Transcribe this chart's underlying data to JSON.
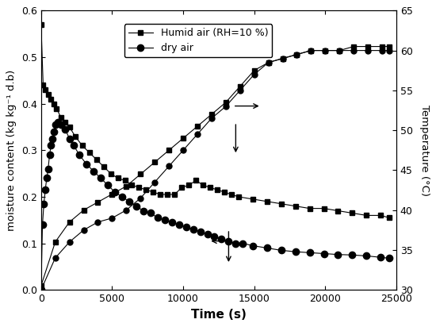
{
  "title": "",
  "xlabel": "Time (s)",
  "ylabel_left": "moisture content (kg kg⁻¹ d.b)",
  "ylabel_right": "Temperature (°C)",
  "xlim": [
    0,
    25000
  ],
  "ylim_left": [
    0.0,
    0.6
  ],
  "ylim_right": [
    30,
    65
  ],
  "xticks": [
    0,
    5000,
    10000,
    15000,
    20000,
    25000
  ],
  "yticks_left": [
    0.0,
    0.1,
    0.2,
    0.3,
    0.4,
    0.5,
    0.6
  ],
  "yticks_right": [
    30,
    35,
    40,
    45,
    50,
    55,
    60,
    65
  ],
  "legend_labels": [
    "Humid air (RH=10 %)",
    "dry air"
  ],
  "mc_humid": {
    "time": [
      0,
      150,
      300,
      500,
      700,
      900,
      1100,
      1400,
      1700,
      2000,
      2400,
      2900,
      3400,
      3900,
      4400,
      4900,
      5400,
      5900,
      6400,
      6900,
      7400,
      7900,
      8400,
      8900,
      9400,
      9900,
      10400,
      10900,
      11400,
      11900,
      12400,
      12900,
      13400,
      13900,
      14900,
      15900,
      16900,
      17900,
      18900,
      19900,
      20900,
      21900,
      22900,
      23900,
      24500
    ],
    "mc": [
      0.57,
      0.44,
      0.43,
      0.42,
      0.41,
      0.4,
      0.39,
      0.37,
      0.36,
      0.35,
      0.33,
      0.31,
      0.295,
      0.28,
      0.265,
      0.25,
      0.24,
      0.235,
      0.225,
      0.22,
      0.215,
      0.21,
      0.205,
      0.205,
      0.205,
      0.22,
      0.225,
      0.235,
      0.225,
      0.22,
      0.215,
      0.21,
      0.205,
      0.2,
      0.195,
      0.19,
      0.185,
      0.18,
      0.175,
      0.175,
      0.17,
      0.165,
      0.16,
      0.16,
      0.155
    ]
  },
  "mc_dry": {
    "time": [
      0,
      100,
      200,
      300,
      400,
      500,
      600,
      700,
      800,
      900,
      1000,
      1200,
      1400,
      1700,
      2000,
      2300,
      2700,
      3200,
      3700,
      4200,
      4700,
      5200,
      5700,
      6200,
      6700,
      7200,
      7700,
      8200,
      8700,
      9200,
      9700,
      10200,
      10700,
      11200,
      11700,
      12200,
      12700,
      13200,
      13700,
      14200,
      14900,
      15900,
      16900,
      17900,
      18900,
      19900,
      20900,
      21900,
      22900,
      23900,
      24500
    ],
    "mc": [
      0.0,
      0.14,
      0.185,
      0.215,
      0.24,
      0.26,
      0.29,
      0.31,
      0.325,
      0.34,
      0.355,
      0.36,
      0.355,
      0.345,
      0.325,
      0.31,
      0.29,
      0.27,
      0.255,
      0.24,
      0.225,
      0.21,
      0.2,
      0.19,
      0.18,
      0.17,
      0.165,
      0.155,
      0.15,
      0.145,
      0.14,
      0.135,
      0.13,
      0.125,
      0.12,
      0.115,
      0.11,
      0.105,
      0.1,
      0.1,
      0.095,
      0.09,
      0.085,
      0.082,
      0.08,
      0.078,
      0.076,
      0.075,
      0.073,
      0.07,
      0.068
    ]
  },
  "temp_humid": {
    "time": [
      0,
      1000,
      2000,
      3000,
      4000,
      5000,
      6000,
      7000,
      8000,
      9000,
      10000,
      11000,
      12000,
      13000,
      14000,
      15000,
      16000,
      17000,
      18000,
      19000,
      20000,
      21000,
      22000,
      23000,
      24000,
      24500
    ],
    "temp": [
      30.5,
      36,
      38.5,
      40,
      41,
      42,
      43,
      44.5,
      46,
      47.5,
      49,
      50.5,
      52,
      53.5,
      55.5,
      57.5,
      58.5,
      59,
      59.5,
      60,
      60,
      60,
      60.5,
      60.5,
      60.5,
      60.5
    ]
  },
  "temp_dry": {
    "time": [
      0,
      1000,
      2000,
      3000,
      4000,
      5000,
      6000,
      7000,
      8000,
      9000,
      10000,
      11000,
      12000,
      13000,
      14000,
      15000,
      16000,
      17000,
      18000,
      19000,
      20000,
      21000,
      22000,
      23000,
      24000,
      24500
    ],
    "temp": [
      30,
      34,
      36,
      37.5,
      38.5,
      39,
      40,
      41.5,
      43.5,
      45.5,
      47.5,
      49.5,
      51.5,
      53,
      55,
      57,
      58.5,
      59,
      59.5,
      60,
      60,
      60,
      60,
      60,
      60,
      60
    ]
  },
  "line_color": "#000000",
  "marker_square": "s",
  "marker_circle": "o",
  "markersize_mc_humid": 4,
  "markersize_mc_dry": 6,
  "markersize_temp": 5
}
